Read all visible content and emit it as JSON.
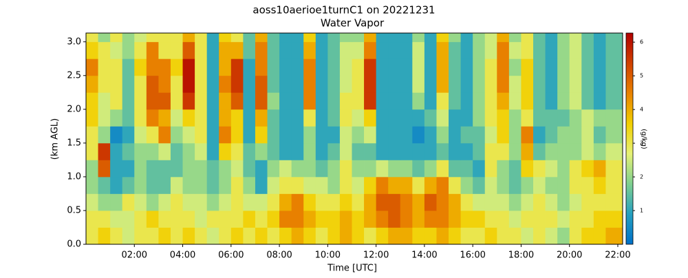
{
  "chart_data": {
    "type": "heatmap",
    "title": "aoss10aerioe1turnC1 on 20221231",
    "subtitle": "Water Vapor",
    "xlabel": "Time [UTC]",
    "ylabel": "(km AGL)",
    "colorbar_label": "(g/kg)",
    "x": [
      0,
      0.5,
      1,
      1.5,
      2,
      2.5,
      3,
      3.5,
      4,
      4.5,
      5,
      5.5,
      6,
      6.5,
      7,
      7.5,
      8,
      8.5,
      9,
      9.5,
      10,
      10.5,
      11,
      11.5,
      12,
      12.5,
      13,
      13.5,
      14,
      14.5,
      15,
      15.5,
      16,
      16.5,
      17,
      17.5,
      18,
      18.5,
      19,
      19.5,
      20,
      20.5,
      21,
      21.5,
      22.2
    ],
    "y": [
      0,
      0.25,
      0.5,
      0.75,
      1,
      1.25,
      1.5,
      1.75,
      2,
      2.25,
      2.5,
      2.75,
      3,
      3.13
    ],
    "z": [
      [
        3,
        3.5,
        3,
        2.5,
        3,
        3,
        3.5,
        3,
        3.5,
        3,
        2.5,
        3,
        3.5,
        3,
        3.5,
        3,
        3.5,
        4,
        3.5,
        3,
        3.5,
        4,
        3.5,
        3,
        3.5,
        4,
        4,
        3.5,
        3.5,
        4,
        3.5,
        3,
        3,
        3.5,
        3,
        3,
        2.5,
        3,
        2.5,
        2,
        3,
        3.5,
        3.5,
        4
      ],
      [
        3,
        3,
        2.5,
        2.5,
        3,
        3.5,
        3,
        3,
        3,
        2.5,
        3,
        3,
        3,
        3.5,
        3,
        3.5,
        4.5,
        4.5,
        4,
        3.5,
        3.5,
        4,
        3.5,
        4,
        4.5,
        5,
        4.5,
        4,
        4.5,
        4.5,
        4,
        3.5,
        3.5,
        3,
        3,
        2.5,
        3,
        3,
        3,
        2.5,
        3,
        3,
        3.5,
        3.5
      ],
      [
        2.5,
        2,
        2,
        3,
        2.5,
        2,
        2.5,
        3,
        2.5,
        2.5,
        2,
        2.5,
        3,
        2.5,
        2.5,
        3,
        4,
        4.5,
        3.5,
        3,
        3,
        3.5,
        3,
        4,
        5,
        5,
        4.5,
        4,
        5,
        4.5,
        4,
        3,
        2.5,
        2.5,
        2.5,
        2,
        2.5,
        3,
        2.5,
        2,
        2.5,
        3,
        3,
        3
      ],
      [
        2,
        1.5,
        1,
        1.5,
        2,
        1.5,
        1.5,
        2.5,
        2,
        2,
        1.5,
        2,
        3,
        2,
        1,
        2.5,
        3,
        3,
        2.5,
        2.5,
        2,
        3,
        2.5,
        3.5,
        4.5,
        4,
        4,
        3,
        4,
        4.5,
        3,
        2,
        1.5,
        2.5,
        2,
        1.5,
        2,
        2.5,
        2,
        2,
        3,
        3,
        3.5,
        3
      ],
      [
        2,
        5,
        1,
        1,
        2,
        1.5,
        1.5,
        1.5,
        2,
        2,
        1.5,
        2,
        2.5,
        1.5,
        1,
        2,
        2.5,
        2,
        2,
        1.5,
        2,
        3,
        2,
        2,
        2.5,
        2,
        2,
        1.5,
        2,
        3,
        1.5,
        1.5,
        1,
        3,
        2,
        1.5,
        3.5,
        3,
        2.5,
        2,
        3,
        3.5,
        4,
        3
      ],
      [
        3,
        5.5,
        1,
        1.5,
        2,
        2,
        2.5,
        1.5,
        2,
        2.5,
        1,
        3.5,
        3,
        1.5,
        2,
        1.5,
        1,
        1,
        2,
        1,
        1.5,
        2.5,
        1.5,
        1.5,
        1,
        1,
        1,
        1,
        1,
        1.5,
        1,
        1,
        1.5,
        3,
        3,
        2,
        4,
        1.5,
        2,
        2,
        2,
        2.5,
        2,
        2.5
      ],
      [
        3,
        2,
        0.5,
        1,
        2.5,
        3,
        4.5,
        2,
        2.5,
        3,
        1,
        4.5,
        3.5,
        1,
        3.5,
        1.5,
        1,
        1,
        2,
        1,
        1,
        2.5,
        2,
        2.5,
        1,
        1,
        1,
        0.5,
        1,
        2,
        1,
        1.5,
        1.5,
        2.5,
        3.5,
        2,
        4.5,
        1,
        1.5,
        2,
        2,
        2.5,
        1.5,
        2
      ],
      [
        3.5,
        2.5,
        2,
        1.5,
        3,
        4.5,
        4,
        2.5,
        3.5,
        3,
        1,
        4,
        3.5,
        1,
        4,
        1.5,
        1,
        1,
        3,
        1,
        1.5,
        3,
        2.5,
        3.5,
        1,
        1,
        1,
        1,
        1.5,
        2.5,
        1,
        1,
        2,
        3,
        3.5,
        2,
        3,
        1.5,
        1.5,
        1.5,
        2,
        2.5,
        2,
        2
      ],
      [
        3.5,
        2.5,
        3,
        1.5,
        3,
        5,
        5,
        3,
        5.5,
        3,
        1,
        4,
        5,
        1,
        5,
        2,
        1,
        1,
        4.5,
        1,
        1.5,
        3,
        3,
        5.5,
        1,
        1,
        1,
        2,
        1,
        3,
        1.5,
        1,
        2,
        3,
        4,
        2.5,
        3.5,
        1.5,
        1,
        2,
        2.5,
        1.5,
        1,
        1.5
      ],
      [
        4,
        3,
        3,
        1.5,
        3,
        5,
        4.5,
        3,
        6,
        3,
        1,
        4.5,
        5.5,
        1,
        5,
        1.5,
        1,
        1,
        4.5,
        1,
        1.5,
        2.5,
        3,
        5.5,
        1,
        1,
        1,
        2.5,
        1,
        4,
        1.5,
        1,
        2,
        3,
        4.5,
        2.5,
        3.5,
        1.5,
        1,
        2,
        2.5,
        1.5,
        1,
        1.5
      ],
      [
        4.5,
        3,
        3,
        1.5,
        3.5,
        4.5,
        4.5,
        3.5,
        6,
        3,
        1,
        4,
        5.5,
        1,
        4.5,
        1.5,
        1,
        1,
        4.5,
        1,
        1.5,
        2.5,
        3,
        5.5,
        1,
        1,
        1,
        2.5,
        1,
        4,
        1.5,
        1,
        2,
        3,
        4.5,
        2,
        3.5,
        1.5,
        1,
        2,
        2.5,
        1.5,
        1,
        1.5
      ],
      [
        3.5,
        3,
        2.5,
        2,
        3,
        4.5,
        3,
        3,
        5,
        3,
        1,
        4,
        4,
        1.5,
        4.5,
        1.5,
        1,
        1,
        4,
        1,
        1.5,
        2.5,
        2.5,
        4.5,
        1,
        1,
        1,
        2.5,
        1,
        4,
        1.5,
        1,
        2,
        2.5,
        4.5,
        2.5,
        3,
        1.5,
        1,
        2,
        2.5,
        1.5,
        1,
        1.5
      ],
      [
        3,
        2,
        3,
        2,
        2.5,
        3,
        3,
        3,
        4,
        3,
        1,
        3.5,
        3,
        1.5,
        4,
        1.5,
        1,
        1,
        3.5,
        1,
        1.5,
        2,
        2,
        4,
        1,
        1,
        1,
        2,
        1,
        3.5,
        2,
        1,
        2,
        2.5,
        4,
        2,
        3,
        1.5,
        1,
        2,
        2.5,
        1.5,
        1,
        1.5
      ]
    ],
    "xlim": [
      0,
      22.2
    ],
    "ylim": [
      0,
      3.13
    ],
    "xticks": [
      {
        "value": 2,
        "label": "02:00"
      },
      {
        "value": 4,
        "label": "04:00"
      },
      {
        "value": 6,
        "label": "06:00"
      },
      {
        "value": 8,
        "label": "08:00"
      },
      {
        "value": 10,
        "label": "10:00"
      },
      {
        "value": 12,
        "label": "12:00"
      },
      {
        "value": 14,
        "label": "14:00"
      },
      {
        "value": 16,
        "label": "16:00"
      },
      {
        "value": 18,
        "label": "18:00"
      },
      {
        "value": 20,
        "label": "20:00"
      },
      {
        "value": 22,
        "label": "22:00"
      }
    ],
    "yticks": [
      {
        "value": 0,
        "label": "0.0"
      },
      0.5,
      {
        "value": 1,
        "label": "1.0"
      },
      1.5,
      {
        "value": 2,
        "label": "2.0"
      },
      2.5,
      {
        "value": 3,
        "label": "3.0"
      }
    ],
    "clim": [
      0,
      6.27
    ],
    "cticks": [
      1,
      2,
      3,
      4,
      5,
      6
    ],
    "colormap": [
      "#0070c8",
      "#25a0c0",
      "#7fd08f",
      "#e6f276",
      "#f2cf00",
      "#e98200",
      "#d04000",
      "#b00000"
    ]
  }
}
